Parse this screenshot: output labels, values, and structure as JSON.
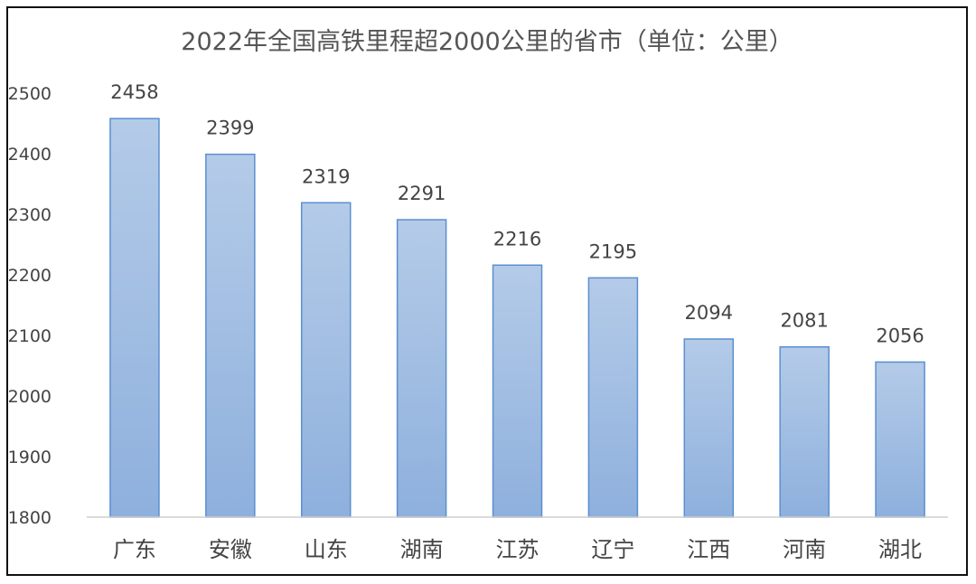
{
  "chart_data": {
    "type": "bar",
    "title": "2022年全国高铁里程超2000公里的省市（单位：公里）",
    "xlabel": "",
    "ylabel": "",
    "categories": [
      "广东",
      "安徽",
      "山东",
      "湖南",
      "江苏",
      "辽宁",
      "江西",
      "河南",
      "湖北"
    ],
    "values": [
      2458,
      2399,
      2319,
      2291,
      2216,
      2195,
      2094,
      2081,
      2056
    ],
    "ylim": [
      1800,
      2500
    ],
    "yticks": [
      "1800",
      "1900",
      "2000",
      "2100",
      "2200",
      "2300",
      "2400",
      "2500"
    ],
    "data_labels": [
      "2458",
      "2399",
      "2319",
      "2291",
      "2216",
      "2195",
      "2094",
      "2081",
      "2056"
    ],
    "highlight_index": 1,
    "grid": false,
    "legend": "none",
    "colors": {
      "bar_top": "#b4cbe8",
      "bar_bottom": "#8eb0dd",
      "bar_stroke": "#5b8fd0",
      "highlight_label": "#c0191c",
      "label": "#444444",
      "axis": "#cfcfcf"
    }
  }
}
